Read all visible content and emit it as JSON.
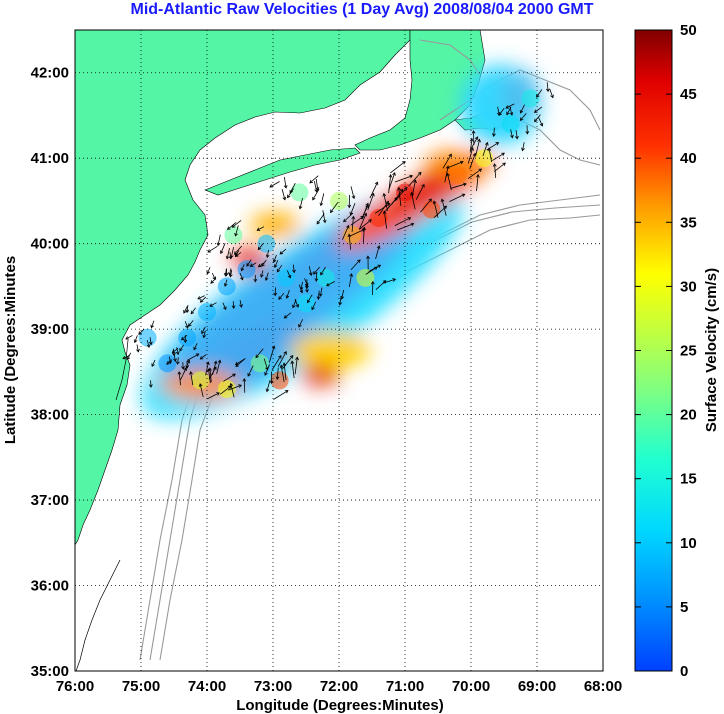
{
  "chart_data": {
    "type": "heatmap",
    "title": "Mid-Atlantic Raw Velocities (1 Day Avg) 2008/08/04 2000 GMT",
    "xlabel": "Longitude (Degrees:Minutes)",
    "ylabel": "Latitude (Degrees:Minutes",
    "xlim": [
      -76,
      -68
    ],
    "ylim": [
      35,
      42.5
    ],
    "x_ticks": [
      "76:00",
      "75:00",
      "74:00",
      "73:00",
      "72:00",
      "71:00",
      "70:00",
      "69:00",
      "68:00"
    ],
    "y_ticks": [
      "35:00",
      "36:00",
      "37:00",
      "38:00",
      "39:00",
      "40:00",
      "41:00",
      "42:00"
    ],
    "grid": true,
    "colorbar": {
      "label": "Surface Velocity (cm/s)",
      "range": [
        0,
        50
      ],
      "ticks": [
        "0",
        "5",
        "10",
        "15",
        "20",
        "25",
        "30",
        "35",
        "40",
        "45",
        "50"
      ],
      "colormap": "jet"
    },
    "velocity_points": [
      {
        "lon": -74.9,
        "lat": 38.9,
        "speed": 8
      },
      {
        "lon": -74.6,
        "lat": 38.6,
        "speed": 6
      },
      {
        "lon": -74.3,
        "lat": 38.9,
        "speed": 7
      },
      {
        "lon": -74.0,
        "lat": 39.2,
        "speed": 8
      },
      {
        "lon": -73.7,
        "lat": 39.5,
        "speed": 7
      },
      {
        "lon": -73.4,
        "lat": 39.7,
        "speed": 6
      },
      {
        "lon": -73.1,
        "lat": 40.0,
        "speed": 9
      },
      {
        "lon": -72.8,
        "lat": 39.6,
        "speed": 10
      },
      {
        "lon": -72.5,
        "lat": 39.3,
        "speed": 12
      },
      {
        "lon": -72.2,
        "lat": 39.6,
        "speed": 14
      },
      {
        "lon": -73.2,
        "lat": 38.6,
        "speed": 22
      },
      {
        "lon": -72.9,
        "lat": 38.4,
        "speed": 40
      },
      {
        "lon": -74.1,
        "lat": 38.4,
        "speed": 28
      },
      {
        "lon": -73.7,
        "lat": 38.3,
        "speed": 30
      },
      {
        "lon": -71.8,
        "lat": 40.1,
        "speed": 35
      },
      {
        "lon": -71.4,
        "lat": 40.3,
        "speed": 42
      },
      {
        "lon": -71.0,
        "lat": 40.6,
        "speed": 45
      },
      {
        "lon": -70.6,
        "lat": 40.4,
        "speed": 40
      },
      {
        "lon": -70.2,
        "lat": 40.8,
        "speed": 38
      },
      {
        "lon": -69.8,
        "lat": 41.0,
        "speed": 30
      },
      {
        "lon": -69.4,
        "lat": 41.4,
        "speed": 12
      },
      {
        "lon": -69.1,
        "lat": 41.7,
        "speed": 14
      },
      {
        "lon": -72.0,
        "lat": 40.5,
        "speed": 25
      },
      {
        "lon": -72.6,
        "lat": 40.6,
        "speed": 20
      },
      {
        "lon": -71.6,
        "lat": 39.6,
        "speed": 28
      },
      {
        "lon": -73.6,
        "lat": 40.1,
        "speed": 20
      }
    ]
  },
  "colors": {
    "land": "#55f5a6",
    "bathymetry": "#999999",
    "title": "#1a1aff"
  }
}
